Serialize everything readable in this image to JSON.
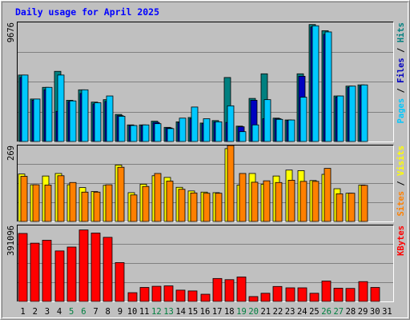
{
  "chart_data": {
    "type": "bar",
    "title": "Daily usage for April 2025",
    "categories": [
      "1",
      "2",
      "3",
      "4",
      "5",
      "6",
      "7",
      "8",
      "9",
      "10",
      "11",
      "12",
      "13",
      "14",
      "15",
      "16",
      "17",
      "18",
      "19",
      "20",
      "21",
      "22",
      "23",
      "24",
      "25",
      "26",
      "27",
      "28",
      "29",
      "30",
      "31"
    ],
    "weekend_categories": [
      "5",
      "6",
      "12",
      "13",
      "19",
      "20",
      "26",
      "27"
    ],
    "panels": [
      {
        "name": "requests",
        "ymax_label": "9676",
        "ylim": [
          0,
          9676
        ],
        "right_labels": [
          {
            "text": "Pages",
            "color": "#00c8ff"
          },
          {
            "text": " / ",
            "color": "#000000"
          },
          {
            "text": "Files",
            "color": "#0000c0"
          },
          {
            "text": " / ",
            "color": "#000000"
          },
          {
            "text": "Hits",
            "color": "#008080"
          }
        ],
        "series": [
          {
            "name": "Hits",
            "color": "#008080",
            "values": [
              5400,
              3450,
              4400,
              5700,
              3350,
              4200,
              3200,
              3400,
              2200,
              1350,
              1350,
              1650,
              1150,
              1600,
              1950,
              1500,
              1700,
              5200,
              1250,
              3500,
              5500,
              1900,
              1750,
              5500,
              9500,
              9000,
              3700,
              4500,
              4600,
              0,
              0
            ]
          },
          {
            "name": "Files",
            "color": "#0000c0",
            "values": [
              5200,
              3350,
              4200,
              2450,
              3250,
              3900,
              3050,
              3250,
              2100,
              1300,
              1300,
              1550,
              1100,
              1550,
              1850,
              1450,
              1600,
              1550,
              1200,
              3350,
              1850,
              1850,
              1700,
              5300,
              9300,
              8700,
              3600,
              4400,
              4500,
              0,
              0
            ]
          },
          {
            "name": "Pages",
            "color": "#00c8ff",
            "values": [
              5400,
              3450,
              4400,
              5400,
              3300,
              4200,
              3150,
              3700,
              2050,
              1300,
              1350,
              1450,
              1050,
              1900,
              2800,
              1850,
              1600,
              2900,
              800,
              1350,
              3400,
              1800,
              1750,
              3600,
              9400,
              8900,
              3700,
              4500,
              4600,
              0,
              0
            ]
          }
        ]
      },
      {
        "name": "visits",
        "ymax_label": "269",
        "ylim": [
          0,
          269
        ],
        "right_labels": [
          {
            "text": "Sites",
            "color": "#ff8000"
          },
          {
            "text": " / ",
            "color": "#000000"
          },
          {
            "text": "Visits",
            "color": "#ffff00"
          }
        ],
        "series": [
          {
            "name": "Visits",
            "color": "#ffff00",
            "values": [
              168,
              130,
              161,
              170,
              130,
              120,
              106,
              128,
              200,
              102,
              132,
              162,
              156,
              121,
              108,
              104,
              102,
              258,
              129,
              170,
              132,
              161,
              182,
              180,
              145,
              167,
              116,
              100,
              129,
              0,
              0
            ]
          },
          {
            "name": "Sites",
            "color": "#ff8000",
            "values": [
              160,
              130,
              129,
              162,
              138,
              104,
              104,
              130,
              192,
              94,
              124,
              170,
              143,
              114,
              101,
              100,
              100,
              269,
              170,
              139,
              144,
              138,
              146,
              142,
              142,
              188,
              98,
              100,
              128,
              0,
              0
            ]
          }
        ]
      },
      {
        "name": "kbytes",
        "ymax_label": "391096",
        "ylim": [
          0,
          391096
        ],
        "right_labels": [
          {
            "text": "KBytes",
            "color": "#ff0000"
          }
        ],
        "series": [
          {
            "name": "KBytes",
            "color": "#ff0000",
            "values": [
              350000,
              300000,
              315000,
              260000,
              280000,
              368000,
              352000,
              330000,
              200000,
              45000,
              72000,
              78000,
              80000,
              58000,
              54000,
              37000,
              118000,
              112000,
              126000,
              25000,
              42000,
              77000,
              70000,
              70000,
              42000,
              105000,
              68000,
              67000,
              102000,
              72000,
              0
            ]
          }
        ]
      }
    ]
  },
  "colors": {
    "background": "#c0c0c0",
    "plot_area": "#c0c0c0",
    "title": "#0000ff",
    "grid": "#808080",
    "tick_weekday": "#000000",
    "tick_weekend": "#008040"
  }
}
